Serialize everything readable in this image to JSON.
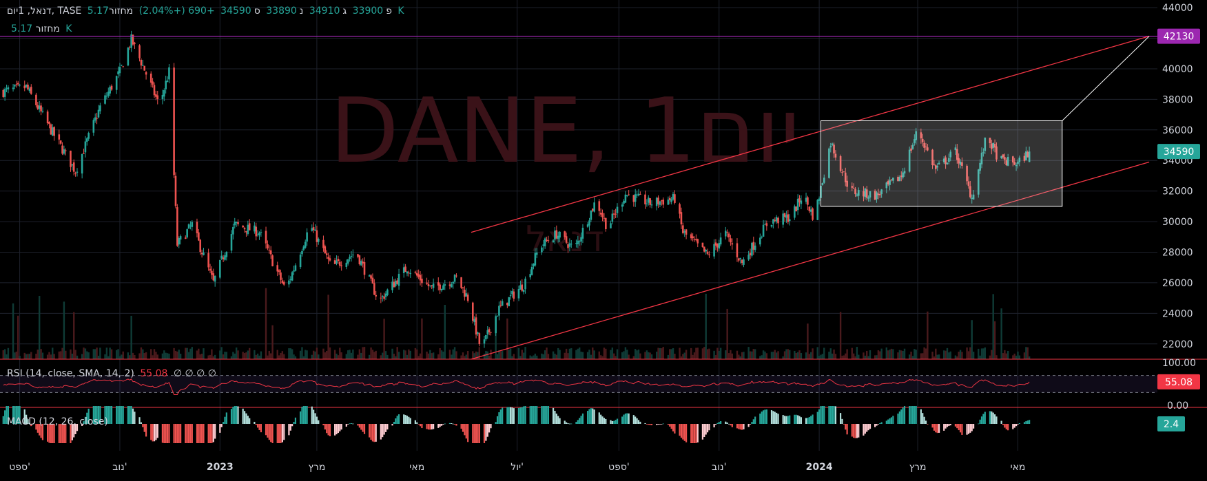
{
  "header": {
    "symbol_line": "דנאל, 1יום, TASE",
    "o_label": "פ",
    "o_value": "33900",
    "h_label": "ג",
    "h_value": "34910",
    "l_label": "נ",
    "l_value": "33890",
    "c_label": "ס",
    "c_value": "34590",
    "change": "+690 (+2.04%)",
    "vol_label": "מחזור",
    "vol_value": "5.17 K"
  },
  "watermark": {
    "title": "DANE, 1יום",
    "subtitle": "דנאל"
  },
  "colors": {
    "up": "#26a69a",
    "down": "#ef5350",
    "accent": "#9c27b0",
    "trend": "#f23645",
    "rsi_line": "#f23645",
    "grid": "#1e222d",
    "text": "#d1d4dc"
  },
  "price_labels": {
    "hline": "42130",
    "last": "34590"
  },
  "rsi": {
    "legend_name": "RSI (14, close, SMA, 14, 2)",
    "value": "55.08",
    "na": "∅ ∅ ∅ ∅",
    "axis_top": "100.00",
    "axis_bottom": "0.00",
    "last_label": "55.08"
  },
  "macd": {
    "legend_name": "MACD (12, 26, close)",
    "last_label": "2.4"
  },
  "chart_data": [
    {
      "type": "candlestick",
      "series_name": "DANE",
      "timeframe": "1D",
      "ylim": [
        21000,
        44500
      ],
      "y_ticks": [
        "44000",
        "42000",
        "40000",
        "38000",
        "36000",
        "34000",
        "32000",
        "30000",
        "28000",
        "26000",
        "24000",
        "22000"
      ],
      "x_labels": [
        "ספט'",
        "נוב'",
        "2023",
        "מרץ",
        "מאי",
        "יול'",
        "ספט'",
        "נוב'",
        "2024",
        "מרץ",
        "מאי"
      ],
      "x_label_dates": [
        "2022-09-01",
        "2022-11-01",
        "2023-01-01",
        "2023-03-01",
        "2023-05-01",
        "2023-07-01",
        "2023-09-01",
        "2023-11-01",
        "2024-01-01",
        "2024-03-01",
        "2024-05-01"
      ],
      "x_range": [
        "2022-08-20",
        "2024-07-25"
      ],
      "close_path": [
        [
          "2022-08-22",
          38500
        ],
        [
          "2022-09-05",
          38800
        ],
        [
          "2022-09-20",
          36000
        ],
        [
          "2022-10-05",
          33300
        ],
        [
          "2022-10-20",
          37500
        ],
        [
          "2022-11-01",
          39800
        ],
        [
          "2022-11-08",
          41900
        ],
        [
          "2022-11-15",
          40200
        ],
        [
          "2022-11-25",
          37600
        ],
        [
          "2022-12-01",
          39800
        ],
        [
          "2022-12-06",
          28500
        ],
        [
          "2022-12-15",
          29800
        ],
        [
          "2022-12-28",
          26000
        ],
        [
          "2023-01-10",
          29800
        ],
        [
          "2023-01-25",
          29300
        ],
        [
          "2023-02-10",
          25500
        ],
        [
          "2023-02-25",
          29800
        ],
        [
          "2023-03-10",
          27000
        ],
        [
          "2023-03-25",
          28000
        ],
        [
          "2023-04-08",
          24800
        ],
        [
          "2023-04-25",
          27000
        ],
        [
          "2023-05-10",
          25600
        ],
        [
          "2023-05-25",
          26300
        ],
        [
          "2023-06-01",
          25000
        ],
        [
          "2023-06-09",
          21600
        ],
        [
          "2023-06-20",
          24300
        ],
        [
          "2023-07-05",
          25900
        ],
        [
          "2023-07-15",
          28400
        ],
        [
          "2023-07-25",
          29200
        ],
        [
          "2023-08-05",
          28200
        ],
        [
          "2023-08-18",
          31400
        ],
        [
          "2023-08-25",
          29600
        ],
        [
          "2023-09-05",
          31800
        ],
        [
          "2023-09-20",
          31200
        ],
        [
          "2023-10-05",
          31500
        ],
        [
          "2023-10-10",
          29300
        ],
        [
          "2023-10-25",
          27800
        ],
        [
          "2023-11-05",
          29200
        ],
        [
          "2023-11-15",
          27300
        ],
        [
          "2023-12-01",
          30000
        ],
        [
          "2023-12-15",
          30300
        ],
        [
          "2023-12-22",
          31800
        ],
        [
          "2023-12-29",
          30200
        ],
        [
          "2024-01-08",
          35200
        ],
        [
          "2024-01-20",
          32000
        ],
        [
          "2024-02-05",
          31700
        ],
        [
          "2024-02-20",
          33000
        ],
        [
          "2024-03-01",
          36000
        ],
        [
          "2024-03-12",
          33400
        ],
        [
          "2024-03-24",
          34600
        ],
        [
          "2024-04-03",
          31600
        ],
        [
          "2024-04-12",
          35600
        ],
        [
          "2024-04-20",
          34000
        ],
        [
          "2024-05-01",
          33800
        ],
        [
          "2024-05-08",
          34590
        ]
      ],
      "drawings": {
        "hline": 42130,
        "upper_trend": [
          [
            "2023-06-03",
            29300
          ],
          [
            "2024-07-20",
            42130
          ]
        ],
        "lower_trend": [
          [
            "2023-06-03",
            21000
          ],
          [
            "2024-07-20",
            33900
          ]
        ],
        "box": {
          "t1": "2024-01-02",
          "t2": "2024-05-28",
          "p_top": 36600,
          "p_bottom": 31000
        },
        "connector": [
          [
            "2024-05-28",
            36600
          ],
          [
            "2024-07-20",
            42130
          ]
        ]
      }
    },
    {
      "type": "line",
      "series_name": "RSI",
      "ylim": [
        0,
        100
      ],
      "bands": [
        30,
        70
      ],
      "last_value": 55.08
    },
    {
      "type": "histogram",
      "series_name": "MACD",
      "last_value": 2.4
    }
  ]
}
